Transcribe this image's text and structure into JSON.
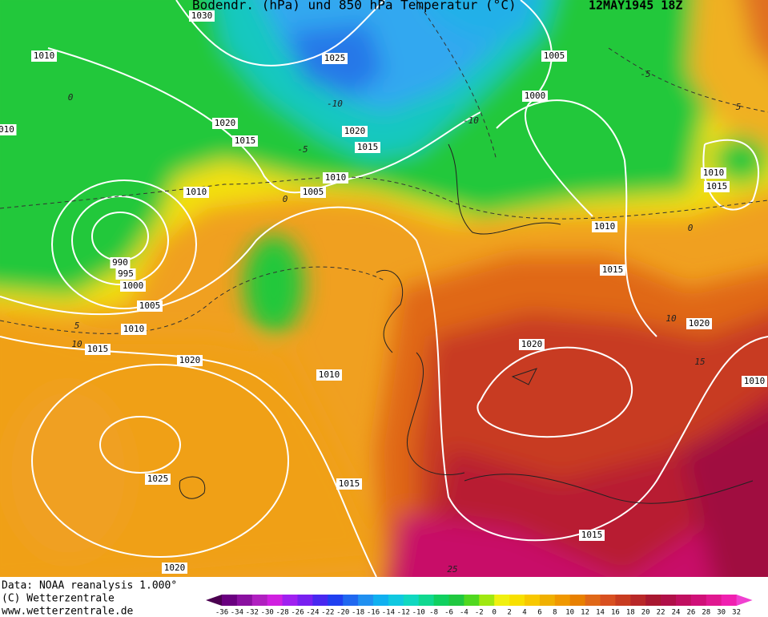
{
  "header": {
    "title": "Bodendr. (hPa) und 850 hPa Temperatur (°C)",
    "date": "12MAY1945 18Z"
  },
  "isobar_labels": [
    "1030",
    "1010",
    "1025",
    "1005",
    "1020",
    "1000",
    "1015",
    "1020",
    "1015",
    "1010",
    "1010",
    "1005",
    "990",
    "995",
    "1000",
    "1005",
    "1010",
    "1015",
    "1020",
    "1010",
    "1020",
    "1010",
    "1015",
    "1020",
    "1010",
    "1010",
    "1015",
    "1025",
    "1015",
    "1015",
    "1020",
    "010"
  ],
  "temperature_labels": [
    "-10",
    "-10",
    "-5",
    "-5",
    "0",
    "0",
    "0",
    "5",
    "10",
    "5",
    "10",
    "15",
    "25"
  ],
  "footer": {
    "data_source": "Data: NOAA reanalysis 1.000°",
    "copyright": "(C) Wetterzentrale",
    "website": "www.wetterzentrale.de"
  },
  "colorbar": {
    "labels": [
      "-36",
      "-34",
      "-32",
      "-30",
      "-28",
      "-26",
      "-24",
      "-22",
      "-20",
      "-18",
      "-16",
      "-14",
      "-12",
      "-10",
      "-8",
      "-6",
      "-4",
      "-2",
      "0",
      "2",
      "4",
      "6",
      "8",
      "10",
      "12",
      "14",
      "16",
      "18",
      "20",
      "22",
      "24",
      "26",
      "28",
      "30",
      "32"
    ]
  }
}
